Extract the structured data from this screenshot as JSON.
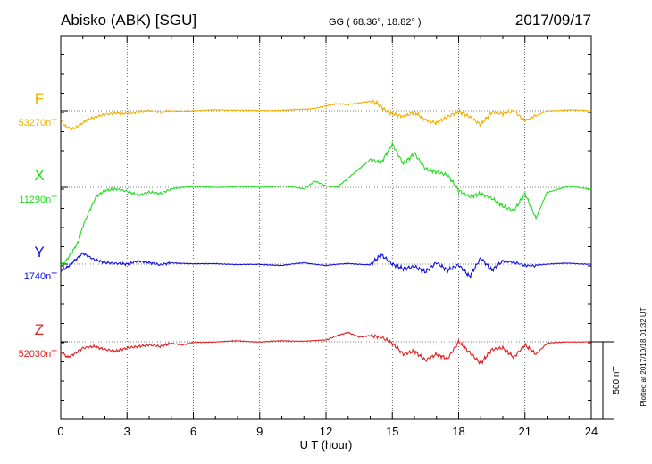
{
  "header": {
    "station": "Abisko (ABK)  [SGU]",
    "coords": "GG ( 68.36°,  18.82° )",
    "date": "2017/09/17"
  },
  "footer": {
    "plotted": "Plotted at 2017/10/18 01:32 UT"
  },
  "chart_data": {
    "type": "line",
    "xlabel": "U T (hour)",
    "xlim": [
      0,
      24
    ],
    "xticks": [
      "0",
      "3",
      "6",
      "9",
      "12",
      "15",
      "18",
      "21",
      "24"
    ],
    "scale_bar": {
      "label": "500 nT",
      "value_nT": 500
    },
    "grid": "dotted vertical every 3 hours; dotted horizontal baseline per component",
    "series": [
      {
        "name": "F",
        "baseline_label": "53270nT",
        "baseline_nT": 53270,
        "color": "#f0b000",
        "x": [
          0,
          0.2,
          0.5,
          0.8,
          1.2,
          1.6,
          2.0,
          2.5,
          3.0,
          3.5,
          4.0,
          4.5,
          5.0,
          5.5,
          6.0,
          7.0,
          8.0,
          9.0,
          10.0,
          11.0,
          11.5,
          12.0,
          12.5,
          13.0,
          13.5,
          14.0,
          14.3,
          14.7,
          15.0,
          15.5,
          16.0,
          16.5,
          17.0,
          17.5,
          18.0,
          18.5,
          19.0,
          19.5,
          20.0,
          20.5,
          21.0,
          22.0,
          23.0,
          24.0
        ],
        "values": [
          -60,
          -100,
          -120,
          -100,
          -60,
          -40,
          -25,
          -15,
          -20,
          -10,
          0,
          -10,
          0,
          -5,
          0,
          5,
          5,
          0,
          5,
          8,
          15,
          30,
          45,
          40,
          50,
          60,
          50,
          0,
          -20,
          -40,
          -10,
          -60,
          -80,
          -40,
          -5,
          -40,
          -90,
          -10,
          -20,
          0,
          -70,
          0,
          5,
          0
        ]
      },
      {
        "name": "X",
        "baseline_label": "11290nT",
        "baseline_nT": 11290,
        "color": "#22dd22",
        "x": [
          0,
          0.2,
          0.5,
          0.8,
          1.0,
          1.3,
          1.6,
          2.0,
          2.5,
          3.0,
          3.5,
          4.0,
          4.5,
          5.0,
          5.5,
          6.0,
          7.0,
          8.0,
          9.0,
          10.0,
          11.0,
          11.5,
          12.0,
          12.5,
          13.0,
          13.5,
          14.0,
          14.5,
          15.0,
          15.5,
          16.0,
          16.5,
          17.0,
          17.5,
          18.0,
          18.5,
          19.0,
          19.5,
          20.0,
          20.5,
          21.0,
          21.5,
          22.0,
          23.0,
          24.0
        ],
        "values": [
          -500,
          -480,
          -420,
          -350,
          -250,
          -150,
          -60,
          -20,
          -10,
          -25,
          -50,
          -30,
          -40,
          -10,
          0,
          5,
          0,
          5,
          0,
          10,
          -10,
          40,
          10,
          0,
          60,
          120,
          180,
          160,
          280,
          150,
          220,
          120,
          100,
          80,
          -20,
          -60,
          -40,
          -70,
          -120,
          -150,
          -40,
          -200,
          -30,
          5,
          -10
        ]
      },
      {
        "name": "Y",
        "baseline_label": "1740nT",
        "baseline_nT": 1740,
        "color": "#1010dd",
        "x": [
          0,
          0.3,
          0.6,
          1.0,
          1.5,
          2.0,
          2.5,
          3.0,
          3.5,
          4.0,
          4.5,
          5.0,
          6.0,
          7.0,
          8.0,
          9.0,
          10.0,
          11.0,
          12.0,
          13.0,
          14.0,
          14.5,
          15.0,
          15.5,
          16.0,
          16.5,
          17.0,
          17.5,
          18.0,
          18.5,
          19.0,
          19.5,
          20.0,
          21.0,
          22.0,
          23.0,
          24.0
        ],
        "values": [
          -40,
          -20,
          20,
          70,
          30,
          10,
          5,
          0,
          20,
          10,
          -5,
          10,
          0,
          5,
          -5,
          0,
          -10,
          10,
          -10,
          5,
          -5,
          60,
          0,
          -30,
          -15,
          -50,
          10,
          -40,
          -5,
          -80,
          40,
          -40,
          20,
          -10,
          0,
          5,
          0
        ]
      },
      {
        "name": "Z",
        "baseline_label": "52030nT",
        "baseline_nT": 52030,
        "color": "#e02020",
        "x": [
          0,
          0.3,
          0.6,
          1.0,
          1.5,
          2.0,
          2.5,
          3.0,
          3.5,
          4.0,
          4.5,
          5.0,
          5.5,
          6.0,
          7.0,
          8.0,
          9.0,
          10.0,
          11.0,
          12.0,
          12.5,
          13.0,
          13.5,
          14.0,
          14.5,
          15.0,
          15.5,
          16.0,
          16.5,
          17.0,
          17.5,
          18.0,
          18.5,
          19.0,
          19.5,
          20.0,
          20.5,
          21.0,
          21.5,
          22.0,
          23.0,
          24.0
        ],
        "values": [
          -60,
          -100,
          -80,
          -40,
          -30,
          -50,
          -60,
          -40,
          -30,
          -20,
          -30,
          -10,
          -20,
          -5,
          0,
          5,
          0,
          5,
          5,
          10,
          40,
          60,
          30,
          40,
          30,
          -10,
          -80,
          -60,
          -120,
          -80,
          -110,
          0,
          -70,
          -140,
          -50,
          -40,
          -100,
          -20,
          -80,
          -10,
          0,
          0
        ]
      }
    ]
  }
}
